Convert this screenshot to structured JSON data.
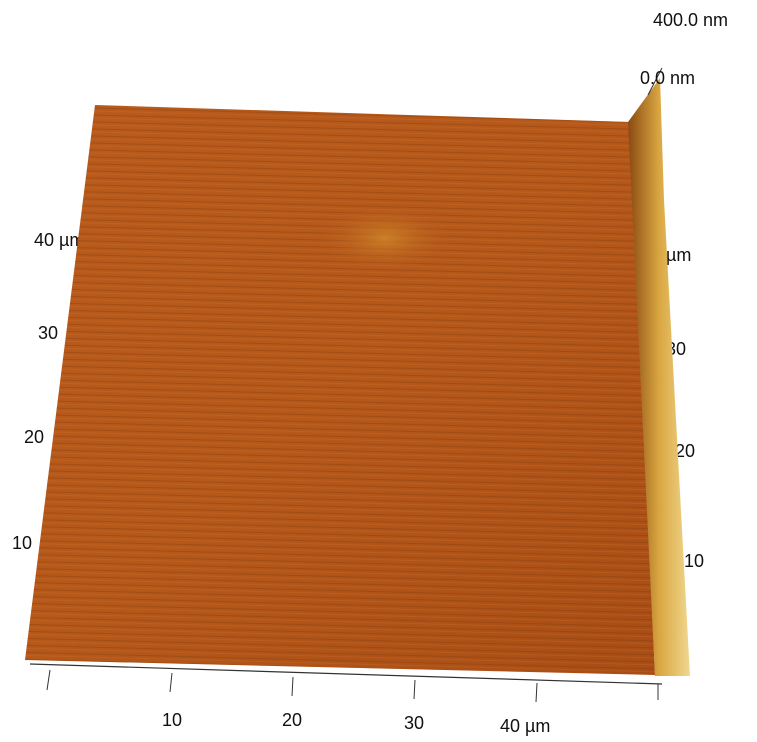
{
  "z_scale": {
    "max": "400.0 nm",
    "min": "0.0 nm"
  },
  "left_axis": {
    "labels": [
      "10",
      "20",
      "30",
      "40 µm"
    ]
  },
  "right_axis": {
    "labels": [
      "10",
      "20",
      "30",
      "µm"
    ]
  },
  "bottom_axis": {
    "labels": [
      "10",
      "20",
      "30",
      "40 µm"
    ]
  }
}
